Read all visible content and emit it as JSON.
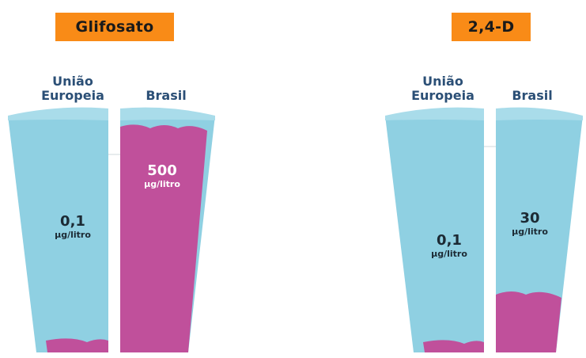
{
  "panels": [
    {
      "title": "Glifosato",
      "left": {
        "label_line1": "União",
        "label_line2": "Europeia",
        "value": "0,1",
        "unit": "μg/litro"
      },
      "right": {
        "label": "Brasil",
        "value": "500",
        "unit": "μg/litro"
      }
    },
    {
      "title": "2,4-D",
      "left": {
        "label_line1": "União",
        "label_line2": "Europeia",
        "value": "0,1",
        "unit": "μg/litro"
      },
      "right": {
        "label": "Brasil",
        "value": "30",
        "unit": "μg/litro"
      }
    }
  ],
  "colors": {
    "tag_bg": "#f98b17",
    "cup_blue": "#8fd0e2",
    "cup_rim": "#a9dcea",
    "liquid_magenta": "#c0509b",
    "label_blue": "#2b4f76"
  }
}
